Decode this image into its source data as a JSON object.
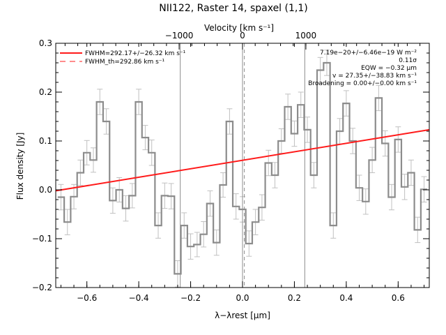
{
  "chart_data": {
    "type": "line",
    "title": "NII122, Raster 14, spaxel (1,1)",
    "xlabel": "λ−λrest [μm]",
    "ylabel": "Flux density [Jy]",
    "top_axis": {
      "label": "Velocity [km s⁻¹]",
      "ticks": [
        -1000,
        0,
        1000
      ],
      "tick_labels": [
        "−1000",
        "0",
        "1000"
      ],
      "micron_per_kms": 0.0002443
    },
    "xlim": [
      -0.72,
      0.72
    ],
    "ylim": [
      -0.2,
      0.3
    ],
    "xticks": [
      -0.6,
      -0.4,
      -0.2,
      0.0,
      0.2,
      0.4,
      0.6
    ],
    "xtick_labels": [
      "−0.6",
      "−0.4",
      "−0.2",
      "0.0",
      "0.2",
      "0.4",
      "0.6"
    ],
    "yticks": [
      -0.2,
      -0.1,
      0.0,
      0.1,
      0.2,
      0.3
    ],
    "ytick_labels": [
      "−0.2",
      "−0.1",
      "0.0",
      "0.1",
      "0.2",
      "0.3"
    ],
    "legend": {
      "placement": "top-left",
      "entries": [
        {
          "label": "FWHM=292.17+/−26.32 km s⁻¹",
          "style": "solid"
        },
        {
          "label": "FWHM_th=292.86 km s⁻¹",
          "style": "dashed"
        }
      ]
    },
    "annotations": [
      "7.19e−20+/−6.46e−19 W m⁻²",
      "0.11σ",
      "EQW = −0.32 μm",
      "v = 27.35+/−38.83 km s⁻¹",
      "Broadening = 0.00+/−0.00 km s⁻¹"
    ],
    "vertical_lines": [
      -0.24,
      0.0,
      0.24
    ],
    "center_dashed_line": 0.007,
    "fit_line": {
      "x": [
        -0.72,
        0.72
      ],
      "y": [
        -0.002,
        0.123
      ]
    },
    "spectrum": {
      "x": [
        -0.7,
        -0.675,
        -0.65,
        -0.625,
        -0.6,
        -0.575,
        -0.55,
        -0.525,
        -0.5,
        -0.475,
        -0.45,
        -0.425,
        -0.4,
        -0.375,
        -0.35,
        -0.325,
        -0.3,
        -0.275,
        -0.25,
        -0.225,
        -0.2,
        -0.175,
        -0.15,
        -0.125,
        -0.1,
        -0.075,
        -0.05,
        -0.025,
        0.0,
        0.025,
        0.05,
        0.075,
        0.1,
        0.125,
        0.15,
        0.175,
        0.2,
        0.225,
        0.25,
        0.275,
        0.3,
        0.325,
        0.35,
        0.375,
        0.4,
        0.425,
        0.45,
        0.475,
        0.5,
        0.525,
        0.55,
        0.575,
        0.6,
        0.625,
        0.65,
        0.675,
        0.7
      ],
      "y": [
        -0.015,
        -0.066,
        -0.014,
        0.035,
        0.076,
        0.061,
        0.18,
        0.14,
        -0.022,
        0.0,
        -0.038,
        -0.012,
        0.18,
        0.107,
        0.076,
        -0.073,
        -0.012,
        -0.013,
        -0.172,
        -0.073,
        -0.116,
        -0.112,
        -0.091,
        -0.028,
        -0.108,
        0.01,
        0.14,
        -0.034,
        -0.04,
        -0.11,
        -0.066,
        -0.036,
        0.055,
        0.03,
        0.1,
        0.17,
        0.115,
        0.174,
        0.123,
        0.03,
        0.245,
        0.26,
        -0.073,
        0.12,
        0.177,
        0.1,
        0.004,
        -0.024,
        0.061,
        0.188,
        0.095,
        -0.015,
        0.103,
        0.006,
        0.035,
        -0.082,
        0.001
      ],
      "err": [
        0.026,
        0.026,
        0.025,
        0.026,
        0.025,
        0.025,
        0.026,
        0.026,
        0.026,
        0.025,
        0.026,
        0.025,
        0.026,
        0.025,
        0.026,
        0.026,
        0.026,
        0.026,
        0.027,
        0.026,
        0.026,
        0.025,
        0.026,
        0.026,
        0.026,
        0.025,
        0.026,
        0.026,
        0.026,
        0.026,
        0.026,
        0.026,
        0.026,
        0.026,
        0.025,
        0.026,
        0.026,
        0.026,
        0.026,
        0.026,
        0.026,
        0.026,
        0.026,
        0.026,
        0.026,
        0.026,
        0.026,
        0.026,
        0.026,
        0.026,
        0.026,
        0.026,
        0.026,
        0.026,
        0.026,
        0.026,
        0.026
      ]
    },
    "colors": {
      "spectrum": "#8c8c8c",
      "error_bars": "#c0c0c0",
      "fit": "#ff1a1a",
      "legend_text": "#cc0000",
      "axes": "#000000",
      "vlines": "#8c8c8c"
    }
  }
}
